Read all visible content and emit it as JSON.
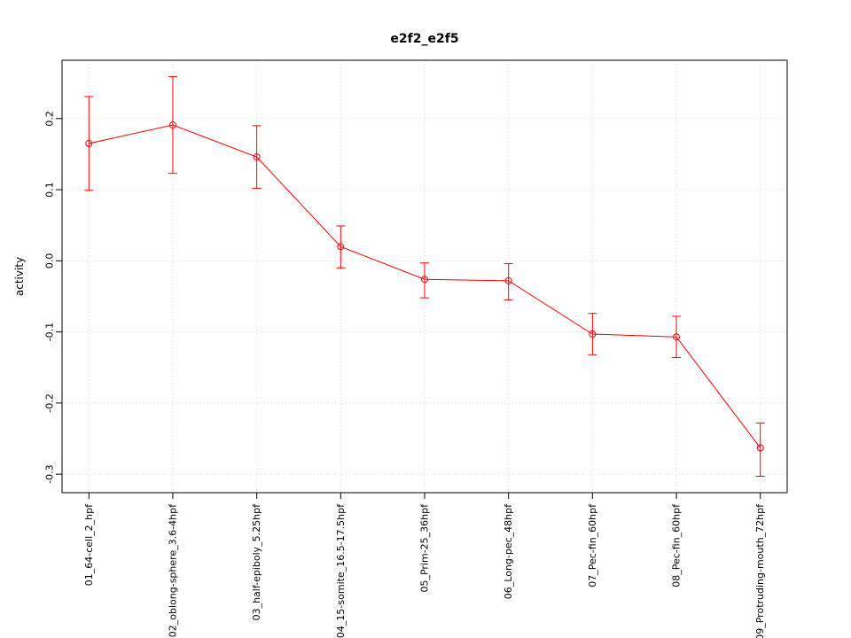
{
  "chart_data": {
    "type": "line",
    "title": "e2f2_e2f5",
    "xlabel": "",
    "ylabel": "activity",
    "grid": true,
    "legend": "none",
    "point_style": "open-circle",
    "series_color": "#FF0000",
    "grid_color": "#D3D3D3",
    "categories": [
      "01_64-cell_2_hpf",
      "02_oblong-sphere_3.6-4hpf",
      "03_half-epiboly_5.25hpf",
      "04_15-somite_16.5-17.5hpf",
      "05_Prim-25_36hpf",
      "06_Long-pec_48hpf",
      "07_Pec-fin_60hpf",
      "08_Pec-fin_60hpf",
      "09_Protruding-mouth_72hpf"
    ],
    "values": [
      0.165,
      0.191,
      0.146,
      0.02,
      -0.026,
      -0.028,
      -0.103,
      -0.107,
      -0.263
    ],
    "error_low": [
      0.099,
      0.123,
      0.102,
      -0.01,
      -0.052,
      -0.055,
      -0.132,
      -0.136,
      -0.303
    ],
    "error_high": [
      0.231,
      0.259,
      0.19,
      0.049,
      -0.003,
      -0.004,
      -0.074,
      -0.078,
      -0.228
    ],
    "y_ticks": [
      -0.3,
      -0.2,
      -0.1,
      0.0,
      0.1,
      0.2
    ],
    "ylim": [
      -0.326,
      0.282
    ]
  }
}
